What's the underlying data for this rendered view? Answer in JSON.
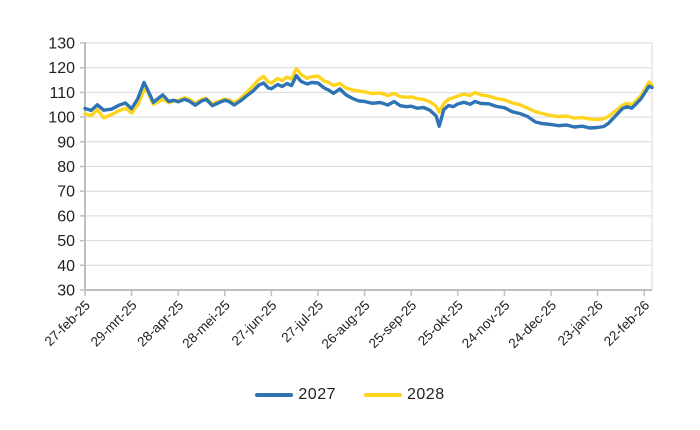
{
  "chart_data": {
    "type": "line",
    "title": "",
    "xlabel": "",
    "ylabel": "",
    "ylim": [
      30,
      130
    ],
    "y_ticks": [
      130,
      120,
      110,
      100,
      90,
      80,
      70,
      60,
      50,
      40,
      30
    ],
    "y_tick_labels": [
      "130",
      "120",
      "110",
      "100",
      "90",
      "80",
      "70",
      "60",
      "50",
      "40",
      "30"
    ],
    "x_tick_labels": [
      "27-feb-25",
      "29-mrt-25",
      "28-apr-25",
      "28-mei-25",
      "27-jun-25",
      "27-jul-25",
      "26-aug-25",
      "25-sep-25",
      "25-okt-25",
      "24-nov-25",
      "24-dec-25",
      "23-jan-26",
      "22-feb-26"
    ],
    "x_tick_days": [
      0,
      30,
      60,
      90,
      120,
      150,
      180,
      210,
      240,
      270,
      300,
      330,
      360
    ],
    "x_total_days": 365,
    "grid": "horizontal",
    "legend_position": "bottom-center",
    "x_days": [
      0,
      4,
      8,
      12,
      17,
      22,
      26,
      30,
      34,
      38,
      40,
      44,
      48,
      50,
      54,
      57,
      60,
      64,
      67,
      71,
      75,
      78,
      82,
      86,
      90,
      93,
      96,
      100,
      104,
      108,
      112,
      115,
      118,
      120,
      124,
      127,
      130,
      133,
      136,
      139,
      143,
      146,
      150,
      154,
      157,
      160,
      164,
      168,
      172,
      176,
      180,
      185,
      190,
      195,
      199,
      203,
      207,
      210,
      214,
      218,
      222,
      226,
      228,
      231,
      234,
      237,
      240,
      244,
      248,
      251,
      255,
      260,
      265,
      270,
      275,
      280,
      285,
      290,
      294,
      300,
      305,
      310,
      315,
      320,
      325,
      330,
      334,
      337,
      340,
      343,
      346,
      349,
      352,
      355,
      358,
      361,
      363,
      365
    ],
    "series": [
      {
        "name": "2027",
        "color": "#2E74B5",
        "values": [
          103.5,
          102.7,
          105.0,
          102.8,
          103.2,
          104.8,
          105.7,
          103.4,
          107.5,
          114.0,
          111.5,
          106.0,
          108.0,
          109.0,
          106.3,
          106.8,
          106.2,
          107.2,
          106.5,
          104.8,
          106.5,
          107.2,
          104.6,
          105.8,
          106.8,
          106.2,
          104.9,
          106.5,
          108.6,
          110.5,
          113.0,
          113.8,
          111.8,
          111.5,
          113.2,
          112.4,
          113.6,
          112.8,
          116.8,
          114.5,
          113.4,
          114.0,
          113.8,
          111.8,
          110.9,
          109.6,
          111.4,
          109.0,
          107.6,
          106.6,
          106.3,
          105.6,
          105.9,
          104.9,
          106.3,
          104.6,
          104.2,
          104.4,
          103.6,
          103.9,
          102.8,
          100.5,
          96.3,
          103.0,
          104.7,
          104.2,
          105.3,
          106.0,
          105.2,
          106.3,
          105.5,
          105.4,
          104.3,
          103.8,
          102.2,
          101.4,
          100.2,
          98.0,
          97.4,
          97.0,
          96.5,
          96.8,
          96.0,
          96.3,
          95.6,
          95.8,
          96.2,
          97.5,
          99.5,
          101.5,
          103.5,
          104.2,
          103.6,
          105.5,
          107.5,
          110.5,
          112.5,
          112.0
        ]
      },
      {
        "name": "2028",
        "color": "#FFD41E",
        "values": [
          101.3,
          100.6,
          103.0,
          99.7,
          101.0,
          102.6,
          103.6,
          101.6,
          105.0,
          111.0,
          110.8,
          105.2,
          106.5,
          107.2,
          105.8,
          106.5,
          106.8,
          107.8,
          107.3,
          105.6,
          107.2,
          107.6,
          105.4,
          106.4,
          107.3,
          106.9,
          105.8,
          107.5,
          110.0,
          112.5,
          115.3,
          116.5,
          114.2,
          113.8,
          115.6,
          114.8,
          116.2,
          115.4,
          119.6,
          117.3,
          115.7,
          116.3,
          116.6,
          114.6,
          114.0,
          112.8,
          113.6,
          111.8,
          111.0,
          110.6,
          110.2,
          109.5,
          109.8,
          108.7,
          109.6,
          108.3,
          108.0,
          108.2,
          107.4,
          107.2,
          106.2,
          104.5,
          102.0,
          105.5,
          107.2,
          107.8,
          108.6,
          109.3,
          108.7,
          110.0,
          109.0,
          108.5,
          107.5,
          107.0,
          105.8,
          105.0,
          103.6,
          102.2,
          101.5,
          100.6,
          100.2,
          100.4,
          99.6,
          99.8,
          99.2,
          99.0,
          99.4,
          100.2,
          101.8,
          103.2,
          104.8,
          105.6,
          105.0,
          106.8,
          108.8,
          112.0,
          114.2,
          113.0
        ]
      }
    ]
  },
  "legend": {
    "items": [
      {
        "label": "2027",
        "color": "#2E74B5"
      },
      {
        "label": "2028",
        "color": "#FFD41E"
      }
    ]
  },
  "colors": {
    "background": "#FFFFFF",
    "gridline": "#D9D9D9",
    "axis_line": "#BFBFBF",
    "tick_label": "#1f1f1f",
    "series_2027": "#2E74B5",
    "series_2028": "#FFD41E"
  }
}
